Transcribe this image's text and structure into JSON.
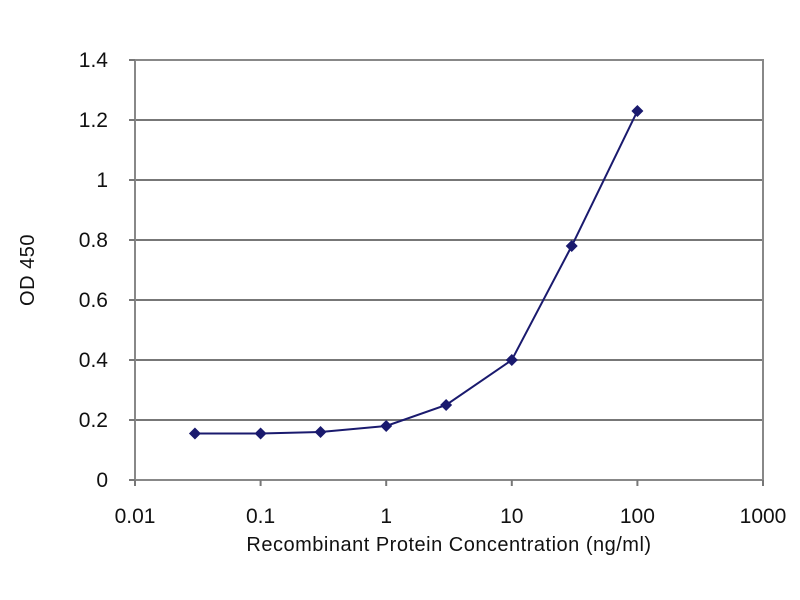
{
  "chart_data": {
    "type": "line",
    "title": "",
    "xlabel": "Recombinant Protein Concentration (ng/ml)",
    "ylabel": "OD 450",
    "x_scale": "log",
    "xlim": [
      0.01,
      1000
    ],
    "ylim": [
      0,
      1.4
    ],
    "x_ticks": [
      "0.01",
      "0.1",
      "1",
      "10",
      "100",
      "1000"
    ],
    "y_ticks": [
      "0",
      "0.2",
      "0.4",
      "0.6",
      "0.8",
      "1",
      "1.2",
      "1.4"
    ],
    "grid": "horizontal",
    "series": [
      {
        "x": [
          0.03,
          0.1,
          0.3,
          1,
          3,
          10,
          30,
          100
        ],
        "y": [
          0.155,
          0.155,
          0.16,
          0.18,
          0.25,
          0.4,
          0.78,
          1.23
        ],
        "color": "#1a1a6e",
        "marker": "diamond"
      }
    ]
  }
}
